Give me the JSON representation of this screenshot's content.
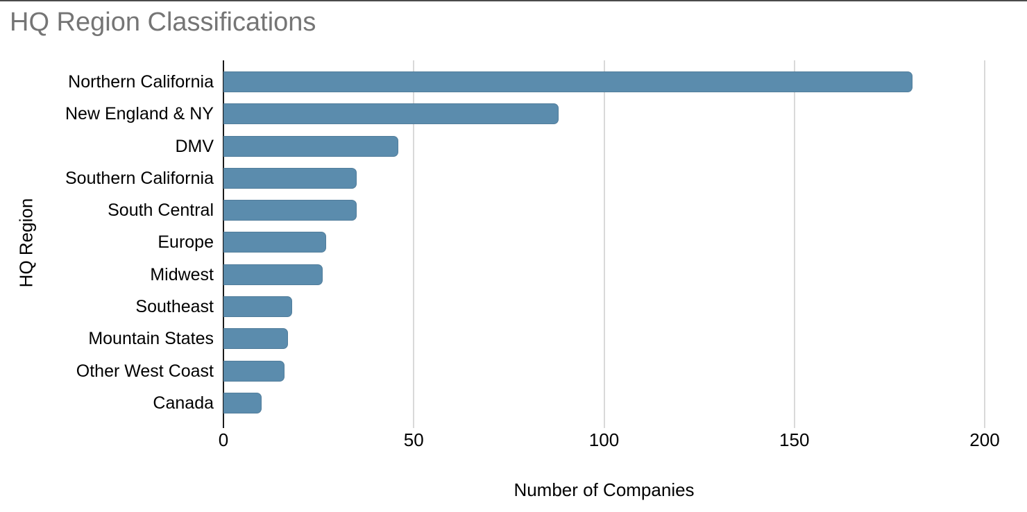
{
  "chart_data": {
    "type": "bar",
    "orientation": "horizontal",
    "title": "HQ Region Classifications",
    "xlabel": "Number of Companies",
    "ylabel": "HQ Region",
    "categories": [
      "Northern California",
      "New England & NY",
      "DMV",
      "Southern California",
      "South Central",
      "Europe",
      "Midwest",
      "Southeast",
      "Mountain States",
      "Other West Coast",
      "Canada"
    ],
    "values": [
      181,
      88,
      46,
      35,
      35,
      27,
      26,
      18,
      17,
      16,
      10
    ],
    "xticks": [
      0,
      50,
      100,
      150,
      200
    ],
    "xlim": [
      0,
      206
    ],
    "legend": "none",
    "grid": "vertical gridlines at x ticks, no horizontal gridlines",
    "colors": {
      "bar": "#5b8cad",
      "title": "#757575",
      "text": "#000000",
      "gridline": "#d9d9d9",
      "axis_line": "#1a1a1a",
      "background": "#ffffff",
      "top_edge_line": "#4a4a4a"
    }
  }
}
